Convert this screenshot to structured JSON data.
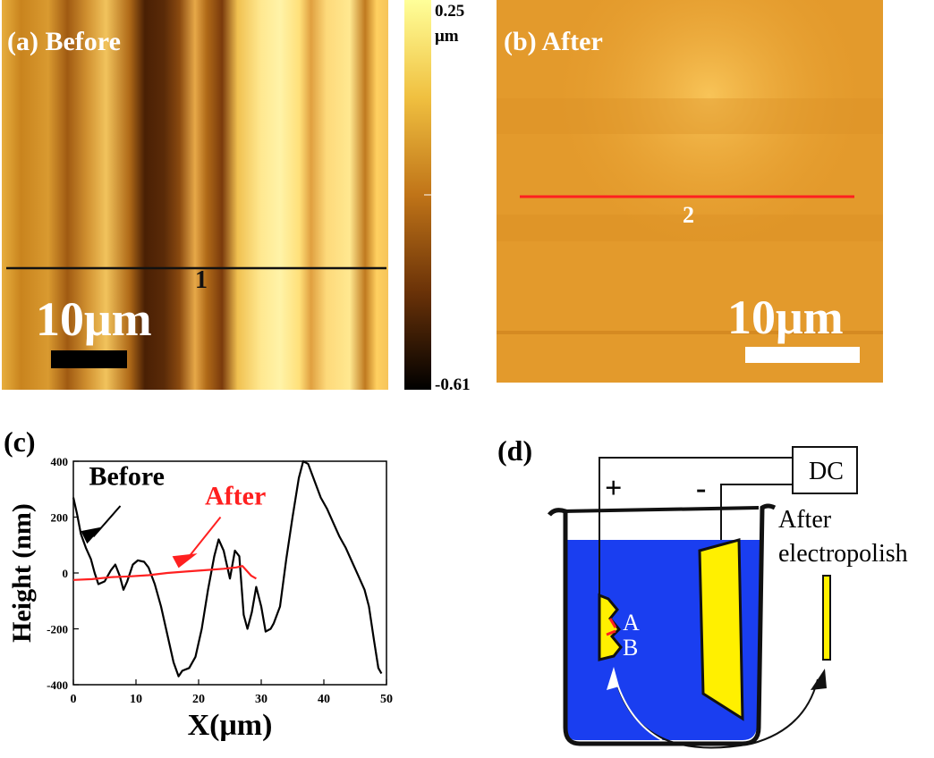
{
  "panel_a": {
    "label": "(a) Before",
    "line_label": "1",
    "scalebar_label": "10μm"
  },
  "colorbar": {
    "max_label": "0.25",
    "unit_label": "μm",
    "min_label": "-0.61",
    "colors": [
      "#ffff99",
      "#f0c040",
      "#c07418",
      "#6a3208",
      "#000000"
    ]
  },
  "panel_b": {
    "label": "(b) After",
    "line_label": "2",
    "scalebar_label": "10μm",
    "line_color": "#ff2020"
  },
  "panel_c": {
    "label": "(c)",
    "legend_before": "Before",
    "legend_after": "After",
    "after_color": "#ff2020",
    "before_color": "#000000"
  },
  "panel_d": {
    "label": "(d)",
    "dc_label": "DC",
    "plus_label": "+",
    "minus_label": "-",
    "after_label_line1": "After",
    "after_label_line2": "electropolish",
    "point_a": "A",
    "point_b": "B",
    "electrolyte_color": "#1a3ef0",
    "electrode_color": "#fff000"
  },
  "chart_data": {
    "type": "line",
    "title": "",
    "xlabel": "X(μm)",
    "ylabel": "Height (nm)",
    "xlim": [
      0,
      50
    ],
    "ylim": [
      -400,
      400
    ],
    "x_ticks": [
      0,
      10,
      20,
      30,
      40,
      50
    ],
    "y_ticks": [
      -400,
      -200,
      0,
      200,
      400
    ],
    "series": [
      {
        "name": "Before",
        "color": "#000000",
        "points": [
          [
            0,
            270
          ],
          [
            0.6,
            210
          ],
          [
            1.2,
            140
          ],
          [
            2,
            90
          ],
          [
            2.8,
            50
          ],
          [
            3.4,
            0
          ],
          [
            4,
            -40
          ],
          [
            5,
            -30
          ],
          [
            6,
            10
          ],
          [
            6.7,
            30
          ],
          [
            7.4,
            -10
          ],
          [
            8,
            -60
          ],
          [
            8.6,
            -30
          ],
          [
            9.5,
            30
          ],
          [
            10.3,
            45
          ],
          [
            11.3,
            40
          ],
          [
            12,
            20
          ],
          [
            13,
            -40
          ],
          [
            14,
            -120
          ],
          [
            15,
            -220
          ],
          [
            16,
            -320
          ],
          [
            16.8,
            -370
          ],
          [
            17.4,
            -350
          ],
          [
            18.5,
            -340
          ],
          [
            19.5,
            -300
          ],
          [
            20.5,
            -200
          ],
          [
            21.5,
            -60
          ],
          [
            22.5,
            60
          ],
          [
            23.2,
            120
          ],
          [
            24,
            80
          ],
          [
            25,
            -20
          ],
          [
            25.8,
            80
          ],
          [
            26.5,
            60
          ],
          [
            27.2,
            -150
          ],
          [
            27.8,
            -200
          ],
          [
            28.5,
            -140
          ],
          [
            29.2,
            -50
          ],
          [
            30,
            -120
          ],
          [
            30.7,
            -210
          ],
          [
            31.5,
            -200
          ],
          [
            32,
            -180
          ],
          [
            33,
            -120
          ],
          [
            34,
            50
          ],
          [
            35,
            200
          ],
          [
            36,
            340
          ],
          [
            36.7,
            400
          ],
          [
            37.5,
            390
          ],
          [
            38.5,
            330
          ],
          [
            39.5,
            270
          ],
          [
            40.5,
            230
          ],
          [
            41.5,
            180
          ],
          [
            42.5,
            130
          ],
          [
            43.5,
            90
          ],
          [
            44.5,
            40
          ],
          [
            45.5,
            -10
          ],
          [
            46.5,
            -60
          ],
          [
            47.2,
            -120
          ],
          [
            48,
            -240
          ],
          [
            48.7,
            -340
          ],
          [
            49.2,
            -360
          ]
        ]
      },
      {
        "name": "After",
        "color": "#ff2020",
        "points": [
          [
            0,
            -25
          ],
          [
            3,
            -22
          ],
          [
            6,
            -15
          ],
          [
            9,
            -12
          ],
          [
            12,
            -8
          ],
          [
            15,
            0
          ],
          [
            18,
            5
          ],
          [
            21,
            10
          ],
          [
            24,
            15
          ],
          [
            26,
            20
          ],
          [
            27,
            25
          ],
          [
            27.6,
            10
          ],
          [
            28.4,
            -10
          ],
          [
            29.2,
            -20
          ]
        ]
      }
    ]
  }
}
